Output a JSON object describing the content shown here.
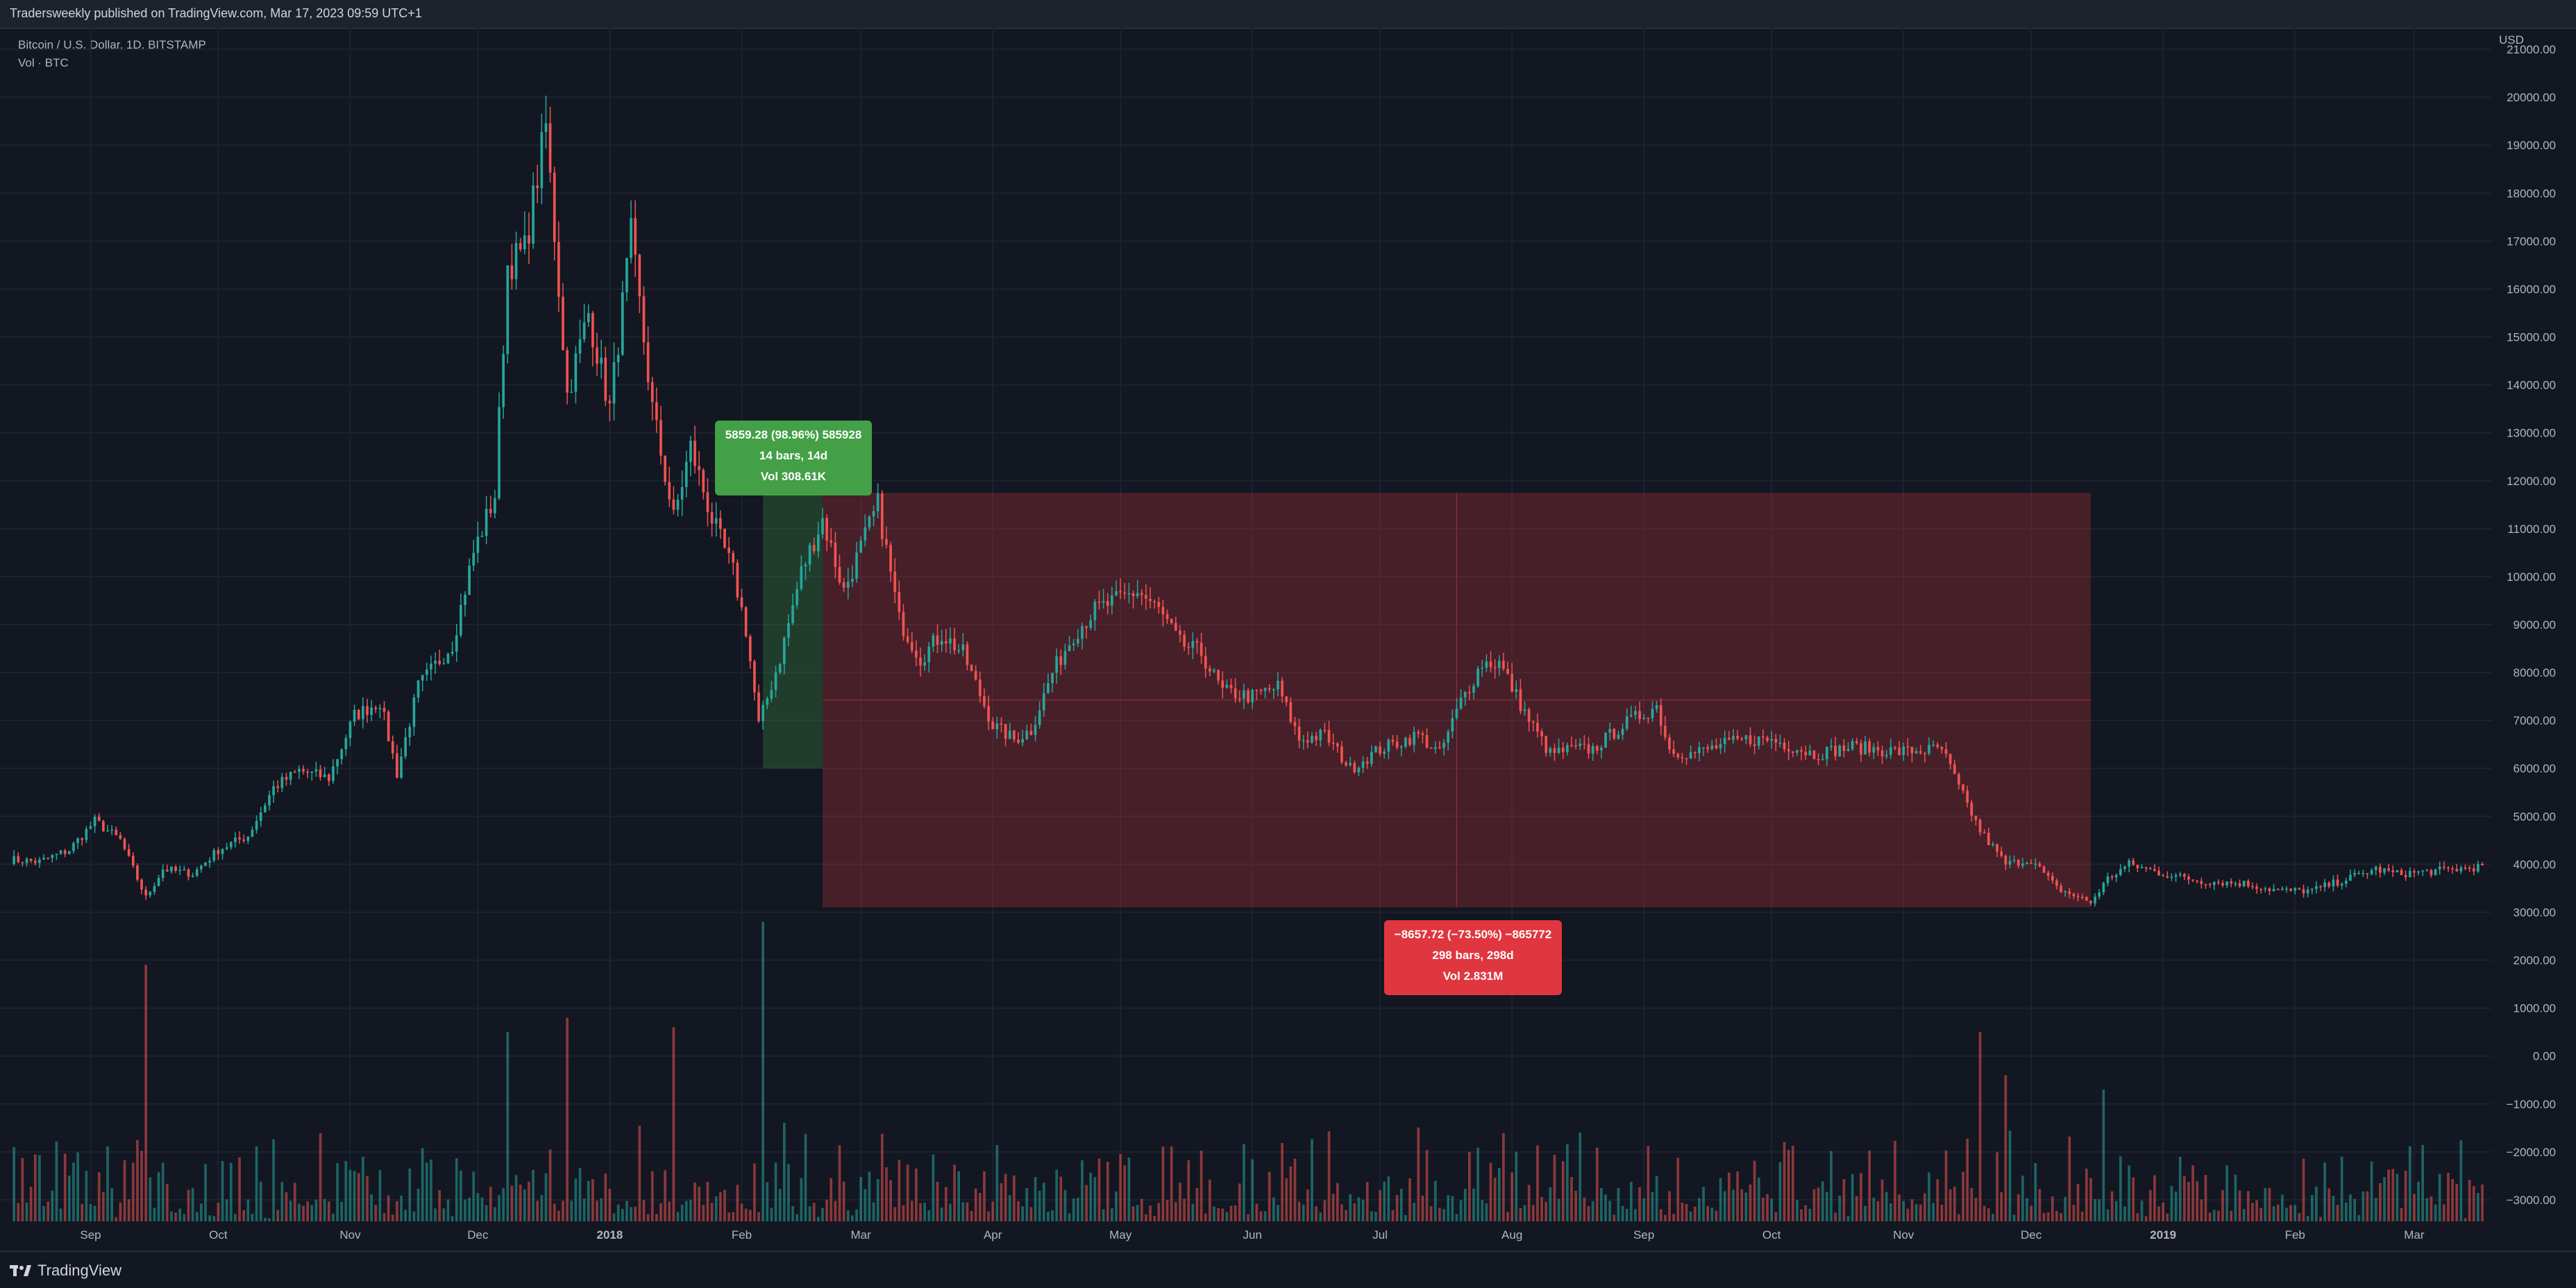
{
  "header": {
    "publish_text": "Tradersweekly published on TradingView.com, Mar 17, 2023 09:59 UTC+1"
  },
  "legend": {
    "symbol_line": "Bitcoin / U.S. Dollar, 1D, BITSTAMP",
    "volume_line": "Vol · BTC"
  },
  "footer": {
    "brand": "TradingView",
    "brand_icon": "tradingview-logo-icon"
  },
  "measures": {
    "gain": {
      "line1": "5859.28 (98.96%) 585928",
      "line2": "14 bars, 14d",
      "line3": "Vol 308.61K",
      "color": "#43a047"
    },
    "loss": {
      "line1": "−8657.72 (−73.50%) −865772",
      "line2": "298 bars, 298d",
      "line3": "Vol 2.831M",
      "color": "#e0363f"
    }
  },
  "chart_data": {
    "type": "candlestick",
    "symbol": "Bitcoin / U.S. Dollar, 1D, BITSTAMP",
    "currency": "USD",
    "up_color": "#26a69a",
    "down_color": "#ef5350",
    "y_ticks": [
      "21000.00",
      "20000.00",
      "19000.00",
      "18000.00",
      "17000.00",
      "16000.00",
      "15000.00",
      "14000.00",
      "13000.00",
      "12000.00",
      "11000.00",
      "10000.00",
      "9000.00",
      "8000.00",
      "7000.00",
      "6000.00",
      "5000.00",
      "4000.00",
      "3000.00",
      "2000.00",
      "1000.00",
      "0.00",
      "−1000.00",
      "−2000.00",
      "−3000.00"
    ],
    "y_range": [
      -3450,
      21450
    ],
    "x_labels": [
      {
        "date": "2017-09-01",
        "label": "Sep"
      },
      {
        "date": "2017-10-01",
        "label": "Oct"
      },
      {
        "date": "2017-11-01",
        "label": "Nov"
      },
      {
        "date": "2017-12-01",
        "label": "Dec"
      },
      {
        "date": "2018-01-01",
        "label": "2018"
      },
      {
        "date": "2018-02-01",
        "label": "Feb"
      },
      {
        "date": "2018-03-01",
        "label": "Mar"
      },
      {
        "date": "2018-04-01",
        "label": "Apr"
      },
      {
        "date": "2018-05-01",
        "label": "May"
      },
      {
        "date": "2018-06-01",
        "label": "Jun"
      },
      {
        "date": "2018-07-01",
        "label": "Jul"
      },
      {
        "date": "2018-08-01",
        "label": "Aug"
      },
      {
        "date": "2018-09-01",
        "label": "Sep"
      },
      {
        "date": "2018-10-01",
        "label": "Oct"
      },
      {
        "date": "2018-11-01",
        "label": "Nov"
      },
      {
        "date": "2018-12-01",
        "label": "Dec"
      },
      {
        "date": "2019-01-01",
        "label": "2019"
      },
      {
        "date": "2019-02-01",
        "label": "Feb"
      },
      {
        "date": "2019-03-01",
        "label": "Mar"
      }
    ],
    "date_range": [
      "2017-08-13",
      "2019-03-17"
    ],
    "close_series": [
      [
        "2017-08-13",
        4100
      ],
      [
        "2017-08-20",
        4050
      ],
      [
        "2017-08-27",
        4300
      ],
      [
        "2017-09-02",
        4900
      ],
      [
        "2017-09-08",
        4500
      ],
      [
        "2017-09-14",
        3300
      ],
      [
        "2017-09-18",
        3900
      ],
      [
        "2017-09-25",
        3800
      ],
      [
        "2017-10-01",
        4300
      ],
      [
        "2017-10-08",
        4600
      ],
      [
        "2017-10-14",
        5600
      ],
      [
        "2017-10-20",
        5950
      ],
      [
        "2017-10-27",
        5800
      ],
      [
        "2017-11-02",
        7100
      ],
      [
        "2017-11-08",
        7400
      ],
      [
        "2017-11-12",
        5900
      ],
      [
        "2017-11-17",
        7700
      ],
      [
        "2017-11-25",
        8600
      ],
      [
        "2017-11-30",
        10500
      ],
      [
        "2017-12-05",
        11700
      ],
      [
        "2017-12-08",
        16500
      ],
      [
        "2017-12-12",
        16800
      ],
      [
        "2017-12-17",
        19400
      ],
      [
        "2017-12-22",
        13800
      ],
      [
        "2017-12-27",
        15500
      ],
      [
        "2018-01-01",
        13500
      ],
      [
        "2018-01-06",
        17100
      ],
      [
        "2018-01-11",
        13500
      ],
      [
        "2018-01-16",
        11200
      ],
      [
        "2018-01-20",
        12700
      ],
      [
        "2018-01-25",
        11200
      ],
      [
        "2018-01-30",
        10100
      ],
      [
        "2018-02-02",
        8900
      ],
      [
        "2018-02-05",
        6900
      ],
      [
        "2018-02-10",
        8300
      ],
      [
        "2018-02-15",
        10100
      ],
      [
        "2018-02-20",
        11200
      ],
      [
        "2018-02-25",
        9700
      ],
      [
        "2018-03-05",
        11500
      ],
      [
        "2018-03-10",
        9100
      ],
      [
        "2018-03-15",
        8300
      ],
      [
        "2018-03-20",
        8800
      ],
      [
        "2018-03-25",
        8400
      ],
      [
        "2018-04-01",
        6900
      ],
      [
        "2018-04-06",
        6600
      ],
      [
        "2018-04-10",
        6800
      ],
      [
        "2018-04-15",
        8000
      ],
      [
        "2018-04-20",
        8800
      ],
      [
        "2018-04-25",
        9300
      ],
      [
        "2018-05-05",
        9700
      ],
      [
        "2018-05-10",
        9300
      ],
      [
        "2018-05-15",
        8600
      ],
      [
        "2018-05-20",
        8400
      ],
      [
        "2018-05-25",
        7600
      ],
      [
        "2018-06-01",
        7500
      ],
      [
        "2018-06-07",
        7700
      ],
      [
        "2018-06-12",
        6600
      ],
      [
        "2018-06-18",
        6700
      ],
      [
        "2018-06-24",
        6000
      ],
      [
        "2018-07-01",
        6400
      ],
      [
        "2018-07-10",
        6700
      ],
      [
        "2018-07-15",
        6300
      ],
      [
        "2018-07-20",
        7400
      ],
      [
        "2018-07-25",
        8200
      ],
      [
        "2018-07-29",
        8200
      ],
      [
        "2018-08-05",
        7000
      ],
      [
        "2018-08-10",
        6300
      ],
      [
        "2018-08-15",
        6400
      ],
      [
        "2018-08-20",
        6400
      ],
      [
        "2018-08-27",
        6900
      ],
      [
        "2018-09-04",
        7300
      ],
      [
        "2018-09-07",
        6400
      ],
      [
        "2018-09-12",
        6300
      ],
      [
        "2018-09-20",
        6500
      ],
      [
        "2018-09-25",
        6600
      ],
      [
        "2018-10-01",
        6600
      ],
      [
        "2018-10-11",
        6300
      ],
      [
        "2018-10-20",
        6450
      ],
      [
        "2018-10-31",
        6350
      ],
      [
        "2018-11-10",
        6400
      ],
      [
        "2018-11-14",
        5600
      ],
      [
        "2018-11-19",
        4700
      ],
      [
        "2018-11-25",
        4000
      ],
      [
        "2018-12-01",
        4100
      ],
      [
        "2018-12-07",
        3500
      ],
      [
        "2018-12-15",
        3200
      ],
      [
        "2018-12-19",
        3700
      ],
      [
        "2018-12-24",
        4000
      ],
      [
        "2019-01-01",
        3800
      ],
      [
        "2019-01-10",
        3650
      ],
      [
        "2019-01-20",
        3600
      ],
      [
        "2019-01-28",
        3450
      ],
      [
        "2019-02-05",
        3450
      ],
      [
        "2019-02-10",
        3600
      ],
      [
        "2019-02-20",
        3900
      ],
      [
        "2019-02-25",
        3800
      ],
      [
        "2019-03-05",
        3850
      ],
      [
        "2019-03-17",
        3950
      ]
    ],
    "volume_series": [
      [
        "2017-09-14",
        1900
      ],
      [
        "2017-12-08",
        500
      ],
      [
        "2017-12-22",
        800
      ],
      [
        "2018-01-16",
        600
      ],
      [
        "2018-02-06",
        2800
      ],
      [
        "2018-11-19",
        500
      ],
      [
        "2018-11-25",
        -400
      ],
      [
        "2018-12-18",
        -700
      ]
    ],
    "measurements": [
      {
        "start_date": "2018-02-06",
        "end_date": "2018-02-20",
        "low": 6000,
        "high": 11750
      },
      {
        "start_date": "2018-02-20",
        "end_date": "2018-12-15",
        "low": 3100,
        "high": 11750
      }
    ]
  }
}
